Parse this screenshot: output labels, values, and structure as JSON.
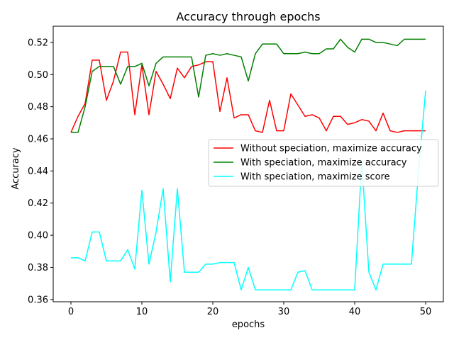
{
  "chart_data": {
    "type": "line",
    "title": "Accuracy  through epochs",
    "xlabel": "epochs",
    "ylabel": "Accuracy",
    "xlim": [
      -2.5,
      52.5
    ],
    "ylim": [
      0.3586,
      0.5301
    ],
    "xticks": [
      0,
      10,
      20,
      30,
      40,
      50
    ],
    "xtick_labels": [
      "0",
      "10",
      "20",
      "30",
      "40",
      "50"
    ],
    "yticks": [
      0.36,
      0.38,
      0.4,
      0.42,
      0.44,
      0.46,
      0.48,
      0.5,
      0.52
    ],
    "ytick_labels": [
      "0.36",
      "0.38",
      "0.40",
      "0.42",
      "0.44",
      "0.46",
      "0.48",
      "0.50",
      "0.52"
    ],
    "grid": false,
    "legend_position": "center-right",
    "x": [
      0,
      1,
      2,
      3,
      4,
      5,
      6,
      7,
      8,
      9,
      10,
      11,
      12,
      13,
      14,
      15,
      16,
      17,
      18,
      19,
      20,
      21,
      22,
      23,
      24,
      25,
      26,
      27,
      28,
      29,
      30,
      31,
      32,
      33,
      34,
      35,
      36,
      37,
      38,
      39,
      40,
      41,
      42,
      43,
      44,
      45,
      46,
      47,
      48,
      49,
      50
    ],
    "series": [
      {
        "name": "Without speciation, maximize accuracy",
        "color": "#ff0000",
        "values": [
          0.464,
          0.474,
          0.482,
          0.509,
          0.509,
          0.484,
          0.496,
          0.514,
          0.514,
          0.475,
          0.506,
          0.475,
          0.502,
          0.494,
          0.485,
          0.504,
          0.498,
          0.505,
          0.506,
          0.508,
          0.508,
          0.477,
          0.498,
          0.473,
          0.475,
          0.475,
          0.465,
          0.464,
          0.484,
          0.465,
          0.465,
          0.488,
          0.481,
          0.474,
          0.475,
          0.473,
          0.465,
          0.474,
          0.474,
          0.469,
          0.47,
          0.472,
          0.471,
          0.465,
          0.476,
          0.465,
          0.464,
          0.465,
          0.465,
          0.465,
          0.465
        ]
      },
      {
        "name": "With speciation, maximize accuracy",
        "color": "#008000",
        "values": [
          0.464,
          0.464,
          0.48,
          0.502,
          0.505,
          0.505,
          0.505,
          0.494,
          0.505,
          0.505,
          0.507,
          0.493,
          0.507,
          0.511,
          0.511,
          0.511,
          0.511,
          0.511,
          0.486,
          0.512,
          0.513,
          0.512,
          0.513,
          0.512,
          0.511,
          0.496,
          0.513,
          0.519,
          0.519,
          0.519,
          0.513,
          0.513,
          0.513,
          0.514,
          0.513,
          0.513,
          0.516,
          0.516,
          0.522,
          0.517,
          0.514,
          0.522,
          0.522,
          0.52,
          0.52,
          0.519,
          0.518,
          0.522,
          0.522,
          0.522,
          0.522
        ]
      },
      {
        "name": "With speciation, maximize score",
        "color": "#00ffff",
        "values": [
          0.386,
          0.386,
          0.384,
          0.402,
          0.402,
          0.384,
          0.384,
          0.384,
          0.391,
          0.379,
          0.428,
          0.382,
          0.402,
          0.429,
          0.371,
          0.429,
          0.377,
          0.377,
          0.377,
          0.382,
          0.382,
          0.383,
          0.383,
          0.383,
          0.366,
          0.38,
          0.366,
          0.366,
          0.366,
          0.366,
          0.366,
          0.366,
          0.377,
          0.378,
          0.366,
          0.366,
          0.366,
          0.366,
          0.366,
          0.366,
          0.366,
          0.446,
          0.377,
          0.366,
          0.382,
          0.382,
          0.382,
          0.382,
          0.382,
          0.44,
          0.49
        ]
      }
    ]
  }
}
